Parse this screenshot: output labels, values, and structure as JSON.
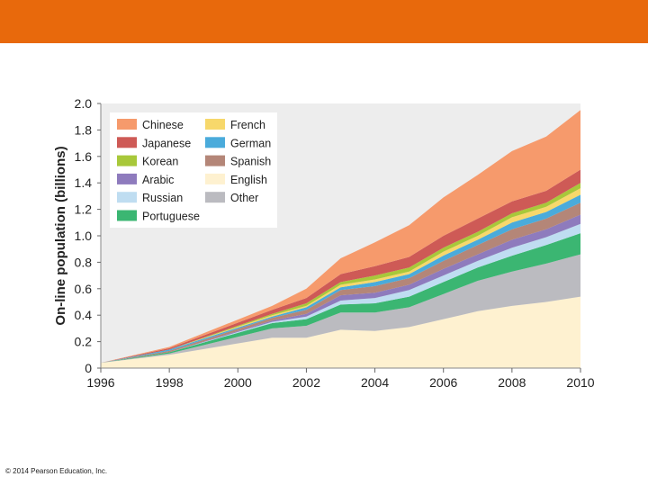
{
  "slide": {
    "accent_color": "#E8690C",
    "copyright": "© 2014 Pearson Education, Inc."
  },
  "chart_data": {
    "type": "area",
    "stacked": true,
    "xlabel": "",
    "ylabel": "On-line population (billions)",
    "xlim": [
      1996,
      2010
    ],
    "ylim": [
      0,
      2.0
    ],
    "x_ticks": [
      "1996",
      "1998",
      "2000",
      "2002",
      "2004",
      "2006",
      "2008",
      "2010"
    ],
    "y_ticks": [
      "0",
      "0.2",
      "0.4",
      "0.6",
      "0.8",
      "1.0",
      "1.2",
      "1.4",
      "1.6",
      "1.8",
      "2.0"
    ],
    "x": [
      1996,
      1998,
      2001,
      2002,
      2003,
      2004,
      2005,
      2006,
      2007,
      2008,
      2009,
      2010
    ],
    "series": [
      {
        "name": "English",
        "color": "#FEF1D0",
        "values": [
          0.04,
          0.1,
          0.23,
          0.23,
          0.29,
          0.28,
          0.31,
          0.37,
          0.43,
          0.47,
          0.5,
          0.54
        ]
      },
      {
        "name": "Other",
        "color": "#BBBBC0",
        "values": [
          0.0,
          0.01,
          0.07,
          0.09,
          0.13,
          0.14,
          0.15,
          0.19,
          0.23,
          0.26,
          0.29,
          0.32
        ]
      },
      {
        "name": "Portuguese",
        "color": "#3BB672",
        "values": [
          0.0,
          0.01,
          0.04,
          0.05,
          0.06,
          0.07,
          0.08,
          0.09,
          0.1,
          0.12,
          0.14,
          0.16
        ]
      },
      {
        "name": "Russian",
        "color": "#BFDDF1",
        "values": [
          0.0,
          0.0,
          0.01,
          0.02,
          0.03,
          0.04,
          0.05,
          0.05,
          0.05,
          0.06,
          0.06,
          0.07
        ]
      },
      {
        "name": "Arabic",
        "color": "#8E7BBD",
        "values": [
          0.0,
          0.0,
          0.01,
          0.02,
          0.04,
          0.04,
          0.04,
          0.05,
          0.05,
          0.06,
          0.06,
          0.07
        ]
      },
      {
        "name": "Spanish",
        "color": "#B48678",
        "values": [
          0.0,
          0.01,
          0.02,
          0.03,
          0.04,
          0.05,
          0.05,
          0.06,
          0.07,
          0.08,
          0.08,
          0.09
        ]
      },
      {
        "name": "German",
        "color": "#4AABDB",
        "values": [
          0.0,
          0.01,
          0.01,
          0.02,
          0.02,
          0.03,
          0.03,
          0.04,
          0.04,
          0.05,
          0.05,
          0.06
        ]
      },
      {
        "name": "French",
        "color": "#F7D86B",
        "values": [
          0.0,
          0.0,
          0.01,
          0.01,
          0.02,
          0.02,
          0.02,
          0.03,
          0.03,
          0.04,
          0.04,
          0.05
        ]
      },
      {
        "name": "Korean",
        "color": "#A8C83A",
        "values": [
          0.0,
          0.0,
          0.01,
          0.02,
          0.02,
          0.03,
          0.03,
          0.03,
          0.03,
          0.03,
          0.03,
          0.04
        ]
      },
      {
        "name": "Japanese",
        "color": "#CE5A56",
        "values": [
          0.0,
          0.01,
          0.03,
          0.04,
          0.06,
          0.07,
          0.08,
          0.09,
          0.1,
          0.09,
          0.09,
          0.1
        ]
      },
      {
        "name": "Chinese",
        "color": "#F69A6C",
        "values": [
          0.0,
          0.01,
          0.03,
          0.07,
          0.12,
          0.18,
          0.24,
          0.29,
          0.33,
          0.38,
          0.41,
          0.45
        ]
      }
    ],
    "legend": {
      "placement": "top-left",
      "columns": [
        [
          "Chinese",
          "Japanese",
          "Korean",
          "Arabic",
          "Russian",
          "Portuguese"
        ],
        [
          "French",
          "German",
          "Spanish",
          "English",
          "Other"
        ]
      ]
    },
    "grid": false,
    "plot_background": "#EDEDED"
  }
}
